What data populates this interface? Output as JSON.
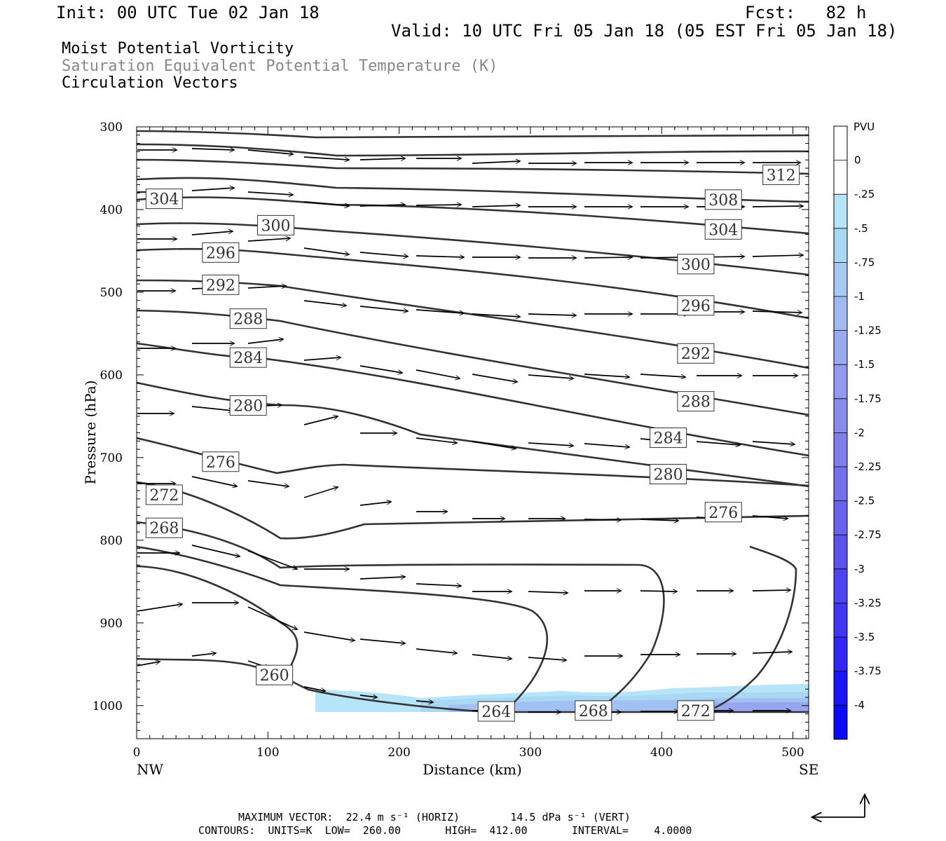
{
  "header": {
    "init": "Init: 00 UTC Tue 02 Jan 18",
    "fcst": "Fcst:   82 h",
    "valid": "Valid: 10 UTC Fri 05 Jan 18 (05 EST Fri 05 Jan 18)",
    "title_pv": "Moist Potential Vorticity",
    "title_thetaes": "Saturation Equivalent Potential Temperature (K)",
    "title_vectors": "Circulation Vectors"
  },
  "footer": {
    "line1": "MAXIMUM VECTOR:  22.4 m s⁻¹ (HORIZ)        14.5 dPa s⁻¹ (VERT)",
    "line2": "CONTOURS:  UNITS=K  LOW=  260.00       HIGH=  412.00       INTERVAL=    4.0000"
  },
  "chart_data": {
    "type": "cross-section",
    "xlabel": "Distance (km)",
    "ylabel": "Pressure (hPa)",
    "x_ticks": [
      0,
      100,
      200,
      300,
      400,
      500
    ],
    "y_ticks": [
      300,
      400,
      500,
      600,
      700,
      800,
      900,
      1000
    ],
    "xlim": [
      0,
      512
    ],
    "ylim": [
      1040,
      300
    ],
    "end_labels": {
      "left": "NW",
      "right": "SE"
    },
    "colorbar": {
      "title": "PVU",
      "labels": [
        "0",
        "-.25",
        "-.5",
        "-.75",
        "-1",
        "-1.25",
        "-1.5",
        "-1.75",
        "-2",
        "-2.25",
        "-2.5",
        "-2.75",
        "-3",
        "-3.25",
        "-3.5",
        "-3.75",
        "-4"
      ],
      "colors": [
        "#ffffff",
        "#ffffff",
        "#b6e4f8",
        "#a9d8f5",
        "#a6caf4",
        "#a1baf2",
        "#9aabf0",
        "#929bef",
        "#8a8ced",
        "#807eed",
        "#7470ed",
        "#6962ee",
        "#5c53ef",
        "#4f44f1",
        "#4135f3",
        "#3026f5",
        "#1b14f8",
        "#0a0af9"
      ]
    },
    "contour_labels": [
      {
        "value": "312",
        "x": 491,
        "p": 358
      },
      {
        "value": "308",
        "x": 447,
        "p": 388
      },
      {
        "value": "304",
        "x": 21,
        "p": 387
      },
      {
        "value": "304",
        "x": 447,
        "p": 424
      },
      {
        "value": "300",
        "x": 106,
        "p": 419
      },
      {
        "value": "300",
        "x": 426,
        "p": 466
      },
      {
        "value": "296",
        "x": 64,
        "p": 452
      },
      {
        "value": "296",
        "x": 426,
        "p": 516
      },
      {
        "value": "292",
        "x": 64,
        "p": 491
      },
      {
        "value": "292",
        "x": 426,
        "p": 574
      },
      {
        "value": "288",
        "x": 85,
        "p": 532
      },
      {
        "value": "288",
        "x": 426,
        "p": 632
      },
      {
        "value": "284",
        "x": 85,
        "p": 579
      },
      {
        "value": "284",
        "x": 405,
        "p": 676
      },
      {
        "value": "280",
        "x": 85,
        "p": 637
      },
      {
        "value": "280",
        "x": 405,
        "p": 720
      },
      {
        "value": "276",
        "x": 64,
        "p": 705
      },
      {
        "value": "276",
        "x": 447,
        "p": 766
      },
      {
        "value": "272",
        "x": 21,
        "p": 745
      },
      {
        "value": "272",
        "x": 426,
        "p": 1006
      },
      {
        "value": "268",
        "x": 21,
        "p": 785
      },
      {
        "value": "268",
        "x": 348,
        "p": 1006
      },
      {
        "value": "264",
        "x": 274,
        "p": 1007
      },
      {
        "value": "260",
        "x": 105,
        "p": 963
      }
    ],
    "pv_shading": {
      "description": "weak negative moist PV (about 0 to -1 PVU) near 980-1010 hPa from ~150 km to 512 km"
    }
  }
}
